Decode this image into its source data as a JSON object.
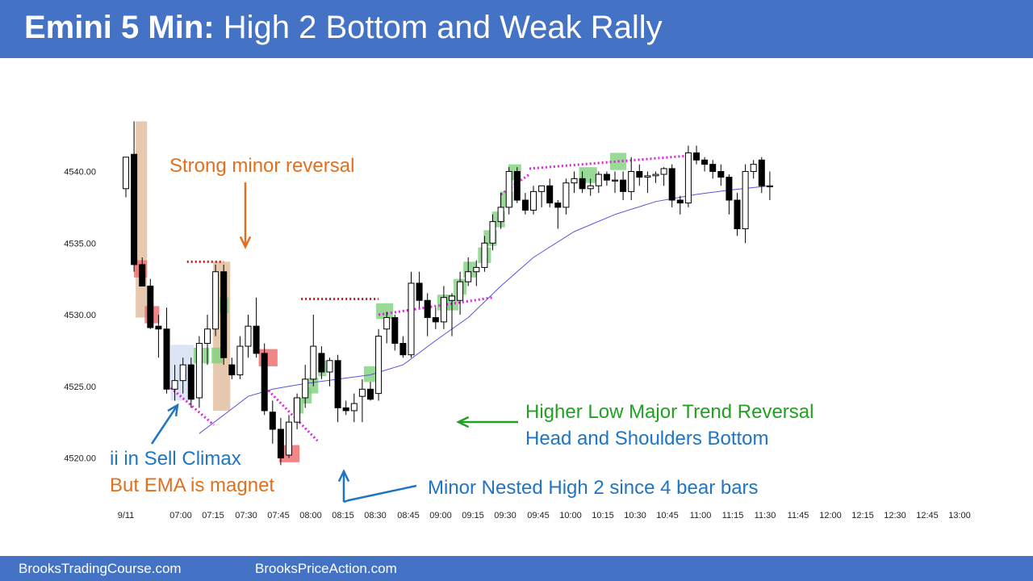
{
  "header": {
    "title_bold": "Emini 5 Min:",
    "title_rest": "High 2 Bottom and Weak Rally"
  },
  "footer": {
    "left": "BrooksTradingCourse.com",
    "right": "BrooksPriceAction.com"
  },
  "colors": {
    "banner": "#4472c4",
    "bull_highlight": "#7fd17f",
    "bear_highlight": "#f07070",
    "climax_zone": "#e7c9b0",
    "ema": "#5555dd",
    "magenta_line": "#e020e0",
    "red_line": "#dd1111",
    "orange_text": "#e07020",
    "green_text": "#22a022",
    "blue_text": "#1f75c4"
  },
  "chart_data": {
    "type": "candlestick",
    "title": "Emini 5 Min: High 2 Bottom and Weak Rally",
    "ylim": [
      4519,
      4544
    ],
    "yticks": [
      "4520.00",
      "4525.00",
      "4530.00",
      "4535.00",
      "4540.00"
    ],
    "xticks": [
      "9/11",
      "07:00",
      "07:15",
      "07:30",
      "07:45",
      "08:00",
      "08:15",
      "08:30",
      "08:45",
      "09:00",
      "09:15",
      "09:30",
      "09:45",
      "10:00",
      "10:15",
      "10:30",
      "10:45",
      "11:00",
      "11:15",
      "11:30",
      "11:45",
      "12:00",
      "12:15",
      "12:30",
      "12:45",
      "13:00"
    ],
    "bars": [
      {
        "o": 4538.8,
        "h": 4541.0,
        "l": 4538.2,
        "c": 4541.0
      },
      {
        "o": 4541.2,
        "h": 4543.5,
        "l": 4533.0,
        "c": 4533.5
      },
      {
        "o": 4533.5,
        "h": 4534.0,
        "l": 4532.0,
        "c": 4532.0
      },
      {
        "o": 4532.0,
        "h": 4532.5,
        "l": 4529.0,
        "c": 4529.1
      },
      {
        "o": 4529.2,
        "h": 4530.0,
        "l": 4527.0,
        "c": 4529.0
      },
      {
        "o": 4529.0,
        "h": 4530.5,
        "l": 4524.5,
        "c": 4524.8
      },
      {
        "o": 4524.8,
        "h": 4526.5,
        "l": 4524.0,
        "c": 4525.4
      },
      {
        "o": 4525.4,
        "h": 4527.0,
        "l": 4524.5,
        "c": 4526.5
      },
      {
        "o": 4526.5,
        "h": 4527.0,
        "l": 4523.5,
        "c": 4524.1
      },
      {
        "o": 4524.2,
        "h": 4528.5,
        "l": 4523.5,
        "c": 4528.0
      },
      {
        "o": 4528.0,
        "h": 4530.0,
        "l": 4526.5,
        "c": 4529.0
      },
      {
        "o": 4529.0,
        "h": 4533.5,
        "l": 4528.5,
        "c": 4533.0
      },
      {
        "o": 4533.0,
        "h": 4533.5,
        "l": 4526.5,
        "c": 4527.0
      },
      {
        "o": 4526.5,
        "h": 4527.0,
        "l": 4525.5,
        "c": 4525.8
      },
      {
        "o": 4525.8,
        "h": 4528.5,
        "l": 4525.5,
        "c": 4527.8
      },
      {
        "o": 4527.8,
        "h": 4530.0,
        "l": 4527.0,
        "c": 4529.2
      },
      {
        "o": 4529.2,
        "h": 4531.2,
        "l": 4527.0,
        "c": 4527.3
      },
      {
        "o": 4527.3,
        "h": 4528.0,
        "l": 4523.0,
        "c": 4523.3
      },
      {
        "o": 4523.2,
        "h": 4524.0,
        "l": 4521.0,
        "c": 4522.0
      },
      {
        "o": 4522.0,
        "h": 4522.8,
        "l": 4519.5,
        "c": 4520.0
      },
      {
        "o": 4520.2,
        "h": 4523.0,
        "l": 4520.0,
        "c": 4522.5
      },
      {
        "o": 4522.5,
        "h": 4524.5,
        "l": 4522.0,
        "c": 4524.2
      },
      {
        "o": 4524.2,
        "h": 4526.5,
        "l": 4523.5,
        "c": 4525.5
      },
      {
        "o": 4525.5,
        "h": 4530.0,
        "l": 4525.0,
        "c": 4527.8
      },
      {
        "o": 4527.3,
        "h": 4527.8,
        "l": 4525.5,
        "c": 4526.0
      },
      {
        "o": 4526.0,
        "h": 4527.0,
        "l": 4525.0,
        "c": 4526.8
      },
      {
        "o": 4526.8,
        "h": 4527.2,
        "l": 4522.5,
        "c": 4523.5
      },
      {
        "o": 4523.5,
        "h": 4524.0,
        "l": 4523.0,
        "c": 4523.3
      },
      {
        "o": 4523.3,
        "h": 4524.5,
        "l": 4522.5,
        "c": 4523.8
      },
      {
        "o": 4524.3,
        "h": 4525.5,
        "l": 4522.5,
        "c": 4524.8
      },
      {
        "o": 4524.8,
        "h": 4525.3,
        "l": 4524.0,
        "c": 4524.1
      },
      {
        "o": 4524.5,
        "h": 4529.0,
        "l": 4524.0,
        "c": 4528.5
      },
      {
        "o": 4529.0,
        "h": 4530.2,
        "l": 4528.0,
        "c": 4529.8
      },
      {
        "o": 4529.8,
        "h": 4530.0,
        "l": 4527.5,
        "c": 4528.0
      },
      {
        "o": 4528.0,
        "h": 4528.5,
        "l": 4527.0,
        "c": 4527.2
      },
      {
        "o": 4527.2,
        "h": 4533.0,
        "l": 4527.0,
        "c": 4532.2
      },
      {
        "o": 4532.2,
        "h": 4533.0,
        "l": 4530.5,
        "c": 4531.0
      },
      {
        "o": 4531.0,
        "h": 4531.5,
        "l": 4528.5,
        "c": 4529.8
      },
      {
        "o": 4529.8,
        "h": 4530.5,
        "l": 4529.0,
        "c": 4529.5
      },
      {
        "o": 4529.5,
        "h": 4532.0,
        "l": 4529.0,
        "c": 4531.2
      },
      {
        "o": 4531.0,
        "h": 4531.5,
        "l": 4528.5,
        "c": 4531.3
      },
      {
        "o": 4531.0,
        "h": 4533.0,
        "l": 4530.0,
        "c": 4532.3
      },
      {
        "o": 4532.3,
        "h": 4534.0,
        "l": 4532.0,
        "c": 4533.0
      },
      {
        "o": 4533.0,
        "h": 4533.8,
        "l": 4532.0,
        "c": 4533.3
      },
      {
        "o": 4533.3,
        "h": 4535.5,
        "l": 4533.0,
        "c": 4535.0
      },
      {
        "o": 4535.0,
        "h": 4537.0,
        "l": 4534.5,
        "c": 4536.5
      },
      {
        "o": 4536.5,
        "h": 4538.5,
        "l": 4536.0,
        "c": 4537.5
      },
      {
        "o": 4537.5,
        "h": 4540.3,
        "l": 4537.0,
        "c": 4540.0
      },
      {
        "o": 4540.0,
        "h": 4540.3,
        "l": 4537.8,
        "c": 4538.0
      },
      {
        "o": 4538.0,
        "h": 4538.5,
        "l": 4537.0,
        "c": 4537.3
      },
      {
        "o": 4537.3,
        "h": 4539.0,
        "l": 4537.0,
        "c": 4538.6
      },
      {
        "o": 4538.6,
        "h": 4539.0,
        "l": 4537.5,
        "c": 4539.0
      },
      {
        "o": 4539.0,
        "h": 4539.5,
        "l": 4537.5,
        "c": 4537.8
      },
      {
        "o": 4537.8,
        "h": 4538.0,
        "l": 4536.0,
        "c": 4537.5
      },
      {
        "o": 4537.5,
        "h": 4539.5,
        "l": 4537.0,
        "c": 4539.2
      },
      {
        "o": 4539.2,
        "h": 4540.0,
        "l": 4538.5,
        "c": 4539.5
      },
      {
        "o": 4539.5,
        "h": 4540.0,
        "l": 4538.5,
        "c": 4538.8
      },
      {
        "o": 4538.8,
        "h": 4539.5,
        "l": 4538.3,
        "c": 4539.0
      },
      {
        "o": 4539.0,
        "h": 4540.0,
        "l": 4538.5,
        "c": 4539.8
      },
      {
        "o": 4539.8,
        "h": 4540.0,
        "l": 4539.0,
        "c": 4539.4
      },
      {
        "o": 4539.4,
        "h": 4540.0,
        "l": 4538.5,
        "c": 4539.4
      },
      {
        "o": 4539.4,
        "h": 4540.0,
        "l": 4538.0,
        "c": 4538.6
      },
      {
        "o": 4538.6,
        "h": 4541.0,
        "l": 4538.0,
        "c": 4540.0
      },
      {
        "o": 4540.0,
        "h": 4540.5,
        "l": 4539.0,
        "c": 4539.6
      },
      {
        "o": 4539.6,
        "h": 4540.0,
        "l": 4538.5,
        "c": 4539.7
      },
      {
        "o": 4539.7,
        "h": 4540.0,
        "l": 4539.2,
        "c": 4539.8
      },
      {
        "o": 4539.8,
        "h": 4540.3,
        "l": 4539.0,
        "c": 4540.2
      },
      {
        "o": 4540.2,
        "h": 4540.5,
        "l": 4537.5,
        "c": 4538.0
      },
      {
        "o": 4538.0,
        "h": 4538.3,
        "l": 4537.0,
        "c": 4537.8
      },
      {
        "o": 4537.8,
        "h": 4541.8,
        "l": 4537.5,
        "c": 4541.3
      },
      {
        "o": 4541.3,
        "h": 4541.8,
        "l": 4540.5,
        "c": 4540.8
      },
      {
        "o": 4540.8,
        "h": 4541.0,
        "l": 4540.0,
        "c": 4540.5
      },
      {
        "o": 4540.5,
        "h": 4540.8,
        "l": 4539.5,
        "c": 4540.0
      },
      {
        "o": 4540.0,
        "h": 4540.5,
        "l": 4539.0,
        "c": 4539.6
      },
      {
        "o": 4539.6,
        "h": 4539.8,
        "l": 4537.0,
        "c": 4538.0
      },
      {
        "o": 4538.0,
        "h": 4538.5,
        "l": 4535.5,
        "c": 4536.0
      },
      {
        "o": 4536.0,
        "h": 4540.5,
        "l": 4535.0,
        "c": 4540.0
      },
      {
        "o": 4540.0,
        "h": 4540.8,
        "l": 4539.5,
        "c": 4540.5
      },
      {
        "o": 4540.8,
        "h": 4541.0,
        "l": 4538.5,
        "c": 4539.0
      },
      {
        "o": 4539.0,
        "h": 4540.0,
        "l": 4538.0,
        "c": 4539.0
      }
    ],
    "ema": [
      [
        9,
        4521.7
      ],
      [
        12,
        4523.0
      ],
      [
        15,
        4524.3
      ],
      [
        18,
        4524.8
      ],
      [
        22,
        4525.2
      ],
      [
        26,
        4525.5
      ],
      [
        30,
        4525.8
      ],
      [
        34,
        4526.5
      ],
      [
        38,
        4528.2
      ],
      [
        42,
        4529.8
      ],
      [
        46,
        4532.0
      ],
      [
        50,
        4534.0
      ],
      [
        55,
        4535.8
      ],
      [
        60,
        4537.0
      ],
      [
        65,
        4537.9
      ],
      [
        70,
        4538.4
      ],
      [
        74,
        4538.7
      ],
      [
        79,
        4539.0
      ]
    ],
    "bull_boxes": [
      {
        "x0": 8.3,
        "x1": 10.2,
        "y0": 4526.6,
        "y1": 4527.7
      },
      {
        "x0": 10.5,
        "x1": 11.9,
        "y0": 4526.6,
        "y1": 4527.7
      },
      {
        "x0": 11.5,
        "x1": 12.6,
        "y0": 4530.1,
        "y1": 4531.2
      },
      {
        "x0": 20.5,
        "x1": 21.8,
        "y0": 4523.1,
        "y1": 4524.2
      },
      {
        "x0": 21.6,
        "x1": 22.8,
        "y0": 4523.8,
        "y1": 4524.9
      },
      {
        "x0": 22.4,
        "x1": 23.6,
        "y0": 4524.5,
        "y1": 4525.6
      },
      {
        "x0": 23.6,
        "x1": 24.6,
        "y0": 4525.7,
        "y1": 4526.8
      },
      {
        "x0": 29.2,
        "x1": 31.3,
        "y0": 4525.3,
        "y1": 4526.4
      },
      {
        "x0": 30.7,
        "x1": 32.8,
        "y0": 4529.7,
        "y1": 4530.8
      },
      {
        "x0": 38.2,
        "x1": 39.8,
        "y0": 4530.3,
        "y1": 4531.4
      },
      {
        "x0": 39.2,
        "x1": 40.8,
        "y0": 4530.3,
        "y1": 4531.4
      },
      {
        "x0": 40.2,
        "x1": 41.8,
        "y0": 4531.4,
        "y1": 4532.5
      },
      {
        "x0": 41.4,
        "x1": 43.0,
        "y0": 4532.6,
        "y1": 4533.7
      },
      {
        "x0": 43.2,
        "x1": 44.8,
        "y0": 4533.6,
        "y1": 4534.7
      },
      {
        "x0": 43.9,
        "x1": 45.5,
        "y0": 4534.8,
        "y1": 4535.9
      },
      {
        "x0": 44.9,
        "x1": 46.5,
        "y0": 4536.1,
        "y1": 4537.2
      },
      {
        "x0": 45.9,
        "x1": 47.5,
        "y0": 4537.5,
        "y1": 4538.6
      },
      {
        "x0": 46.9,
        "x1": 48.5,
        "y0": 4539.4,
        "y1": 4540.5
      },
      {
        "x0": 55.6,
        "x1": 57.8,
        "y0": 4539.2,
        "y1": 4540.3
      },
      {
        "x0": 59.4,
        "x1": 61.4,
        "y0": 4540.1,
        "y1": 4541.3
      }
    ],
    "bear_boxes": [
      {
        "x0": 1.0,
        "x1": 2.6,
        "y0": 4532.6,
        "y1": 4533.8
      },
      {
        "x0": 2.3,
        "x1": 4.1,
        "y0": 4529.4,
        "y1": 4530.6
      },
      {
        "x0": 16.3,
        "x1": 18.6,
        "y0": 4526.4,
        "y1": 4527.6
      },
      {
        "x0": 18.8,
        "x1": 21.3,
        "y0": 4519.7,
        "y1": 4520.9
      }
    ],
    "zones": [
      {
        "x0": 1.2,
        "x1": 2.6,
        "y0": 4529.8,
        "y1": 4543.5,
        "color": "#e7c9b0"
      },
      {
        "x0": 10.7,
        "x1": 12.8,
        "y0": 4523.3,
        "y1": 4533.7,
        "color": "#e7c9b0"
      },
      {
        "x0": 5.5,
        "x1": 8.3,
        "y0": 4524.0,
        "y1": 4527.9,
        "color": "#dbe5f6"
      }
    ],
    "annotations": [
      {
        "text": "Strong minor reversal",
        "color": "#e07020"
      },
      {
        "text": "ii in Sell Climax",
        "color": "#1f75c4"
      },
      {
        "text": "But EMA is magnet",
        "color": "#e07020"
      },
      {
        "text": "Minor Nested High 2 since 4 bear bars",
        "color": "#1f75c4"
      },
      {
        "text": "Higher Low Major Trend Reversal",
        "color": "#22a022"
      },
      {
        "text": "Head and Shoulders Bottom",
        "color": "#1f75c4"
      }
    ]
  }
}
